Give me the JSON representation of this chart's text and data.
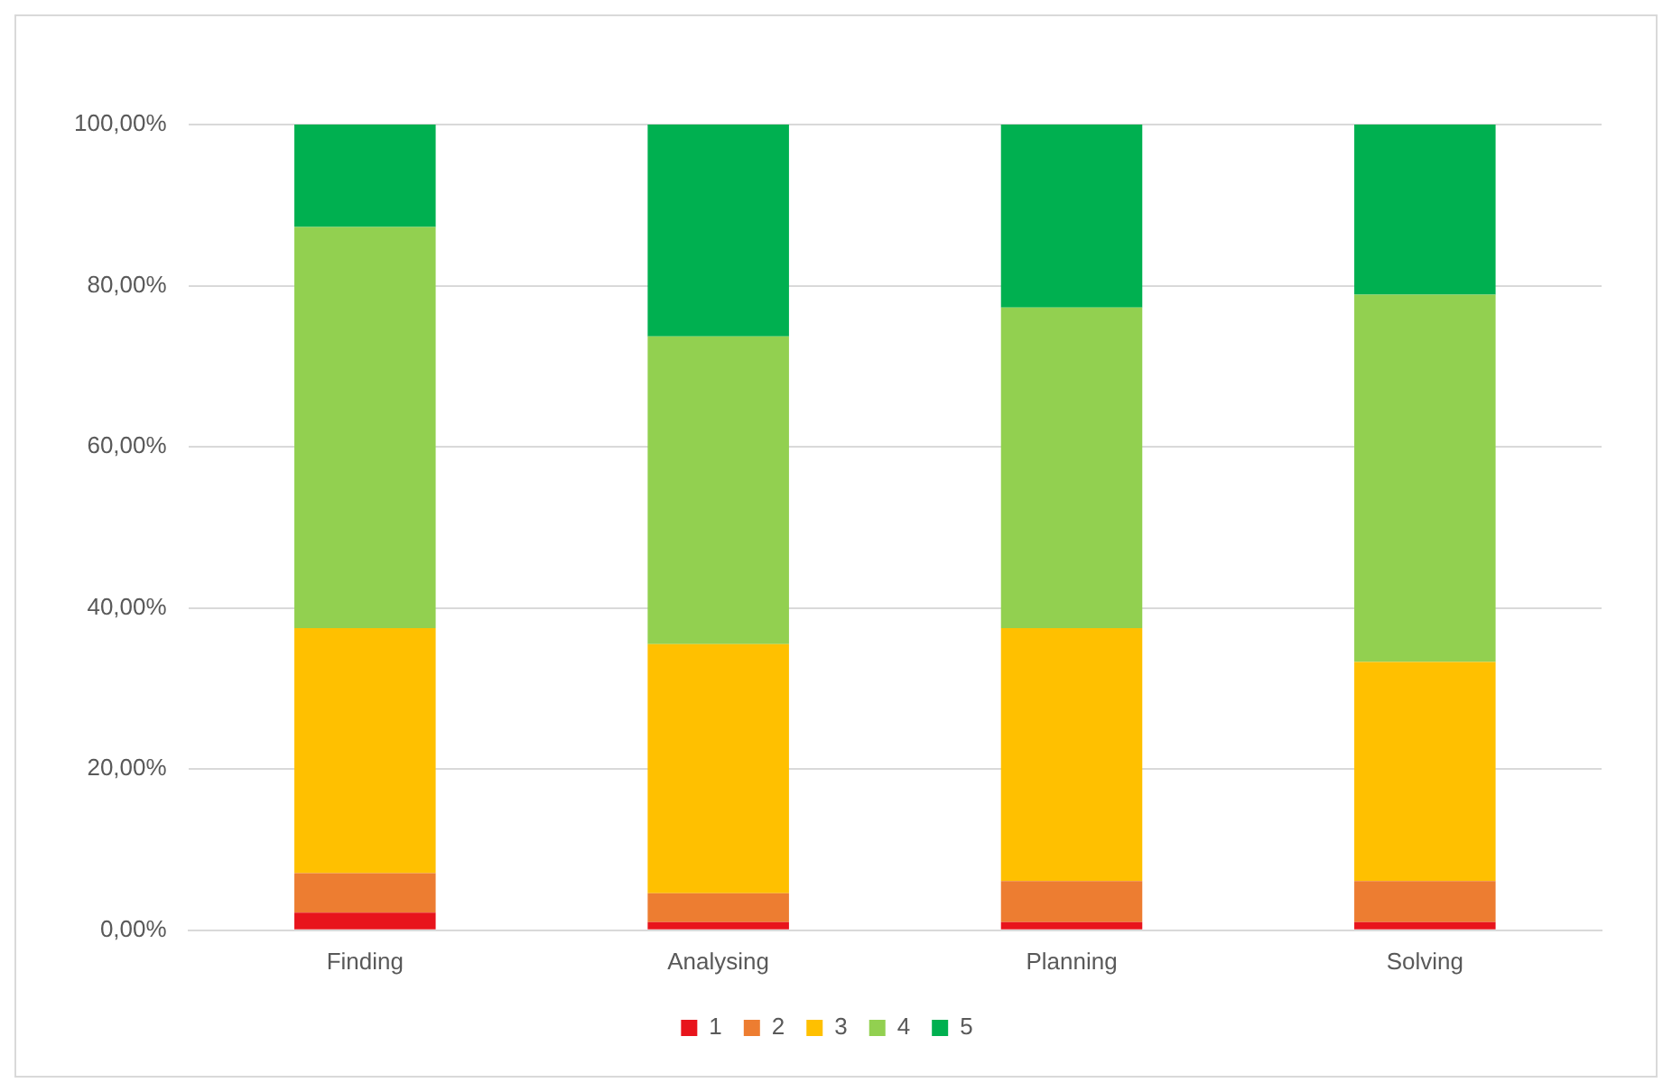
{
  "chart_data": {
    "type": "bar",
    "stacked": true,
    "categories": [
      "Finding",
      "Analysing",
      "Planning",
      "Solving"
    ],
    "series": [
      {
        "name": "1",
        "color": "#e8141c",
        "values": [
          2.2,
          1.0,
          1.0,
          1.0
        ]
      },
      {
        "name": "2",
        "color": "#ed7d31",
        "values": [
          4.9,
          3.6,
          5.1,
          5.1
        ]
      },
      {
        "name": "3",
        "color": "#ffc000",
        "values": [
          30.4,
          30.9,
          31.4,
          27.2
        ]
      },
      {
        "name": "4",
        "color": "#92d050",
        "values": [
          49.8,
          38.2,
          39.8,
          45.6
        ]
      },
      {
        "name": "5",
        "color": "#00b050",
        "values": [
          12.7,
          26.3,
          22.7,
          21.1
        ]
      }
    ],
    "ylim": [
      0,
      100
    ],
    "yticks": [
      {
        "value": 0,
        "label": "0,00%"
      },
      {
        "value": 20,
        "label": "20,00%"
      },
      {
        "value": 40,
        "label": "40,00%"
      },
      {
        "value": 60,
        "label": "60,00%"
      },
      {
        "value": 80,
        "label": "80,00%"
      },
      {
        "value": 100,
        "label": "100,00%"
      }
    ],
    "grid": "y",
    "legend": "bottom"
  }
}
